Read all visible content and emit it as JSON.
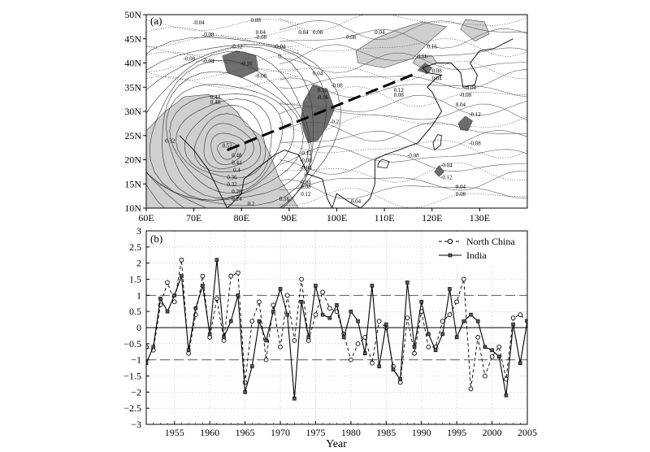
{
  "chart_data": [
    {
      "type": "map",
      "panel_label": "(a)",
      "xticks": [
        "60E",
        "70E",
        "80E",
        "90E",
        "100E",
        "110E",
        "120E",
        "130E"
      ],
      "yticks": [
        "10N",
        "15N",
        "20N",
        "25N",
        "30N",
        "35N",
        "40N",
        "45N",
        "50N"
      ],
      "xlim": [
        60,
        140
      ],
      "ylim": [
        10,
        50
      ],
      "shading": {
        "light": "#cfcfcf",
        "dark": "#6e6e6e"
      },
      "shaded_regions": [
        {
          "shade": "light",
          "points": [
            [
              60,
              26
            ],
            [
              64,
              30
            ],
            [
              68,
              33
            ],
            [
              73,
              33.5
            ],
            [
              76,
              32.5
            ],
            [
              79,
              30
            ],
            [
              81,
              27
            ],
            [
              84,
              25
            ],
            [
              86,
              21
            ],
            [
              88,
              16
            ],
            [
              90,
              13
            ],
            [
              92,
              10
            ],
            [
              60,
              10
            ]
          ]
        },
        {
          "shade": "light",
          "points": [
            [
              104.5,
              40
            ],
            [
              110,
              39
            ],
            [
              116,
              41
            ],
            [
              120,
              45
            ],
            [
              123,
              47.5
            ],
            [
              118,
              48.5
            ],
            [
              113,
              47
            ],
            [
              108,
              45
            ],
            [
              104,
              42.5
            ]
          ]
        },
        {
          "shade": "light",
          "points": [
            [
              116,
              40
            ],
            [
              118,
              39
            ],
            [
              121,
              40
            ],
            [
              120,
              41.5
            ],
            [
              117,
              41.5
            ]
          ]
        },
        {
          "shade": "light",
          "points": [
            [
              126,
              47
            ],
            [
              129,
              44.5
            ],
            [
              132,
              46
            ],
            [
              131,
              48.5
            ],
            [
              127,
              49
            ]
          ]
        },
        {
          "shade": "dark",
          "points": [
            [
              76,
              41.5
            ],
            [
              79,
              42.5
            ],
            [
              83,
              41.5
            ],
            [
              83.5,
              38.5
            ],
            [
              80,
              37
            ],
            [
              77,
              38
            ]
          ]
        },
        {
          "shade": "dark",
          "points": [
            [
              93,
              32
            ],
            [
              95,
              35.5
            ],
            [
              98,
              34.5
            ],
            [
              99.5,
              30.5
            ],
            [
              98,
              27
            ],
            [
              96,
              24
            ],
            [
              94,
              23.5
            ],
            [
              93,
              26
            ],
            [
              92.5,
              28.5
            ]
          ]
        },
        {
          "shade": "dark",
          "points": [
            [
              117,
              38.5
            ],
            [
              118.5,
              40
            ],
            [
              120,
              39
            ],
            [
              119,
              37.8
            ]
          ]
        },
        {
          "shade": "dark",
          "points": [
            [
              125.5,
              27.5
            ],
            [
              127,
              29
            ],
            [
              128.5,
              28
            ],
            [
              127.5,
              26
            ],
            [
              126,
              26.2
            ]
          ]
        },
        {
          "shade": "dark",
          "points": [
            [
              120.5,
              17.5
            ],
            [
              121.5,
              18.8
            ],
            [
              122.5,
              17.5
            ],
            [
              121.5,
              16.5
            ]
          ]
        }
      ],
      "contour_labels": [
        {
          "text": "-0.04",
          "lon": 71,
          "lat": 48
        },
        {
          "text": "-0.08",
          "lon": 73,
          "lat": 45.5
        },
        {
          "text": "0.08",
          "lon": 83,
          "lat": 48.5
        },
        {
          "text": "0.04",
          "lon": 84,
          "lat": 46
        },
        {
          "text": "-0.08",
          "lon": 84,
          "lat": 45
        },
        {
          "text": "0.04",
          "lon": 93,
          "lat": 46
        },
        {
          "text": "0.08",
          "lon": 96,
          "lat": 46
        },
        {
          "text": "0.08",
          "lon": 103,
          "lat": 45
        },
        {
          "text": "0.04",
          "lon": 109,
          "lat": 46
        },
        {
          "text": "0.16",
          "lon": 120,
          "lat": 43
        },
        {
          "text": "-0.04",
          "lon": 88,
          "lat": 43
        },
        {
          "text": "0",
          "lon": 88,
          "lat": 41
        },
        {
          "text": "-0.08",
          "lon": 69,
          "lat": 40.5
        },
        {
          "text": "-0.04",
          "lon": 73,
          "lat": 40
        },
        {
          "text": "-0.12",
          "lon": 79,
          "lat": 43
        },
        {
          "text": "-0.16",
          "lon": 81,
          "lat": 39.5
        },
        {
          "text": "-0.08",
          "lon": 84,
          "lat": 37
        },
        {
          "text": "0.04",
          "lon": 96,
          "lat": 37.5
        },
        {
          "text": "0.16",
          "lon": 118,
          "lat": 41
        },
        {
          "text": "0.08",
          "lon": 121,
          "lat": 38
        },
        {
          "text": "0.04",
          "lon": 121,
          "lat": 36.5
        },
        {
          "text": "0.12",
          "lon": 113,
          "lat": 34
        },
        {
          "text": "0.08",
          "lon": 113,
          "lat": 33
        },
        {
          "text": "-0.08",
          "lon": 100,
          "lat": 35
        },
        {
          "text": "0.12",
          "lon": 97,
          "lat": 34
        },
        {
          "text": "-0.16",
          "lon": 97,
          "lat": 32.5
        },
        {
          "text": "-0.2",
          "lon": 99.5,
          "lat": 27.5
        },
        {
          "text": "-0.04",
          "lon": 128,
          "lat": 34.5
        },
        {
          "text": "-0.08",
          "lon": 127,
          "lat": 33
        },
        {
          "text": "0.04",
          "lon": 126,
          "lat": 31
        },
        {
          "text": "-0.12",
          "lon": 129,
          "lat": 29
        },
        {
          "text": "-0.08",
          "lon": 129,
          "lat": 23
        },
        {
          "text": "-0.08",
          "lon": 116,
          "lat": 20.5
        },
        {
          "text": "-0.04",
          "lon": 123,
          "lat": 18.5
        },
        {
          "text": "-0.12",
          "lon": 123,
          "lat": 16
        },
        {
          "text": "0.04",
          "lon": 126,
          "lat": 14
        },
        {
          "text": "0.08",
          "lon": 126,
          "lat": 12.5
        },
        {
          "text": "0.04",
          "lon": 104,
          "lat": 11
        },
        {
          "text": "0.32",
          "lon": 65,
          "lat": 23.5
        },
        {
          "text": "0.52",
          "lon": 77,
          "lat": 22.5
        },
        {
          "text": "0.48",
          "lon": 79,
          "lat": 20.5
        },
        {
          "text": "0.44",
          "lon": 79,
          "lat": 19
        },
        {
          "text": "0.4",
          "lon": 79,
          "lat": 17.5
        },
        {
          "text": "0.36",
          "lon": 78,
          "lat": 16
        },
        {
          "text": "0.32",
          "lon": 78,
          "lat": 14.5
        },
        {
          "text": "0.28",
          "lon": 79,
          "lat": 13
        },
        {
          "text": "0.24",
          "lon": 79,
          "lat": 11.5
        },
        {
          "text": "0.2",
          "lon": 82,
          "lat": 10.5
        },
        {
          "text": "0.44",
          "lon": 74.5,
          "lat": 32.5
        },
        {
          "text": "0.48",
          "lon": 74.5,
          "lat": 31.5
        },
        {
          "text": "0.16",
          "lon": 89,
          "lat": 11.5
        },
        {
          "text": "-0.12",
          "lon": 93.5,
          "lat": 21
        },
        {
          "text": "-0.08",
          "lon": 93.5,
          "lat": 19.5
        },
        {
          "text": "-0.04",
          "lon": 93.5,
          "lat": 18
        },
        {
          "text": "0",
          "lon": 93.5,
          "lat": 16.5
        },
        {
          "text": "0.04",
          "lon": 93.5,
          "lat": 15
        },
        {
          "text": "0.08",
          "lon": 93.5,
          "lat": 14
        },
        {
          "text": "0.12",
          "lon": 93.5,
          "lat": 12.5
        }
      ],
      "dashed_line": [
        [
          77,
          22
        ],
        [
          117,
          38
        ]
      ]
    },
    {
      "type": "line",
      "panel_label": "(b)",
      "xlabel": "Year",
      "ylabel": "",
      "xlim": [
        1951,
        2005
      ],
      "ylim": [
        -3,
        3
      ],
      "xticks": [
        1955,
        1960,
        1965,
        1970,
        1975,
        1980,
        1985,
        1990,
        1995,
        2000,
        2005
      ],
      "xtick_labels": [
        "1955",
        "1960",
        "1965",
        "1970",
        "1975",
        "1980",
        "1985",
        "1990",
        "1995",
        "2000",
        "2005"
      ],
      "yticks": [
        -3,
        -2.5,
        -2,
        -1.5,
        -1,
        -0.5,
        0,
        0.5,
        1,
        1.5,
        2,
        2.5,
        3
      ],
      "ytick_labels": [
        "−3",
        "−2.5",
        "−2",
        "−1.5",
        "−1",
        "−0.5",
        "0",
        "0.5",
        "1",
        "1.5",
        "2",
        "2.5",
        "3"
      ],
      "grid": true,
      "reference_lines": [
        1,
        -1
      ],
      "legend_position": "top-right",
      "years": [
        1951,
        1952,
        1953,
        1954,
        1955,
        1956,
        1957,
        1958,
        1959,
        1960,
        1961,
        1962,
        1963,
        1964,
        1965,
        1966,
        1967,
        1968,
        1969,
        1970,
        1971,
        1972,
        1973,
        1974,
        1975,
        1976,
        1977,
        1978,
        1979,
        1980,
        1981,
        1982,
        1983,
        1984,
        1985,
        1986,
        1987,
        1988,
        1989,
        1990,
        1991,
        1992,
        1993,
        1994,
        1995,
        1996,
        1997,
        1998,
        1999,
        2000,
        2001,
        2002,
        2003,
        2004,
        2005
      ],
      "series": [
        {
          "name": "North China",
          "style": "dashed",
          "marker": "open-circle",
          "values": [
            -0.6,
            -0.7,
            0.7,
            1.4,
            0.8,
            2.1,
            -0.8,
            0.4,
            1.6,
            -0.3,
            0.9,
            -0.4,
            1.6,
            1.7,
            -1.7,
            0.2,
            0.8,
            -1.0,
            0.7,
            -0.6,
            1.0,
            -0.4,
            1.5,
            -0.4,
            0.4,
            1.1,
            0.6,
            0.5,
            -0.2,
            -1.0,
            -0.5,
            -0.3,
            -1.1,
            0.2,
            0.0,
            -1.2,
            -1.7,
            0.3,
            -0.8,
            0.5,
            -0.6,
            -0.6,
            0.2,
            0.4,
            0.8,
            1.5,
            -1.9,
            -0.3,
            -1.5,
            -0.9,
            -0.6,
            -1.6,
            0.3,
            0.4,
            0.2
          ]
        },
        {
          "name": "India",
          "style": "solid",
          "marker": "filled-square",
          "values": [
            -1.1,
            -0.6,
            0.9,
            0.5,
            1.0,
            1.6,
            -0.7,
            0.6,
            1.3,
            -0.2,
            2.1,
            -0.3,
            0.2,
            1.0,
            -2.0,
            -1.2,
            0.2,
            -0.4,
            0.5,
            1.2,
            0.4,
            -2.2,
            0.8,
            -0.3,
            1.3,
            0.4,
            0.3,
            0.7,
            -0.3,
            0.5,
            0.2,
            -0.8,
            1.3,
            -1.2,
            0.1,
            -1.3,
            -1.6,
            1.4,
            -0.6,
            0.8,
            -0.2,
            -0.7,
            -0.2,
            1.2,
            -0.3,
            0.2,
            0.4,
            0.2,
            -0.6,
            -0.7,
            -0.9,
            -2.1,
            0.1,
            -1.1,
            0.2
          ]
        }
      ]
    }
  ]
}
